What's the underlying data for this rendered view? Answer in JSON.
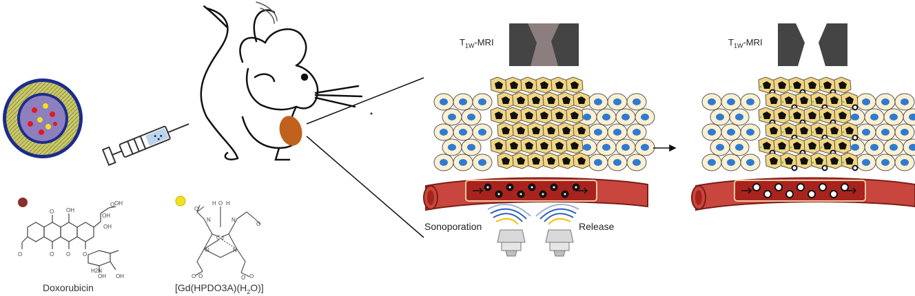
{
  "labels": {
    "mri_left_prefix": "T",
    "mri_left_sub": "1W",
    "mri_left_suffix": "-MRI",
    "mri_right_prefix": "T",
    "mri_right_sub": "1W",
    "mri_right_suffix": "-MRI",
    "sonoporation": "Sonoporation",
    "release": "Release",
    "doxorubicin_caption": "Doxorubicin",
    "gd_caption_part1": "[Gd(HPDO3A)(H",
    "gd_caption_sub": "2",
    "gd_caption_part2": "O)]"
  },
  "structure_atoms": {
    "dox": [
      "O",
      "OH",
      "O",
      "OH",
      "OH",
      "OH",
      "O",
      "O",
      "O",
      "O",
      "OH",
      "H2N",
      "OH"
    ],
    "gd": [
      "H",
      "O",
      "H",
      "N",
      "N",
      "Gd",
      "N",
      "N",
      "O",
      "O",
      "O",
      "O",
      "O",
      "O"
    ]
  },
  "colors": {
    "doxorubicin_dot": "#8B2E2E",
    "gd_dot": "#F2E11E",
    "vessel": "#C8463E",
    "vessel_lumen": "#A8231E",
    "tumor_cell": "#F2D682",
    "normal_cell": "#FBF0D2",
    "nucleus": "#2F7BD1",
    "mri_dark": "#444444",
    "mri_gray": "#8C7E7E",
    "mri_bright": "#FFFFFF",
    "tumor_organ": "#C0621E"
  },
  "icons": {
    "liposome": "liposome-icon",
    "syringe": "syringe-icon",
    "mouse": "mouse-drawing",
    "transducer_left": "ultrasound-transducer-icon",
    "transducer_right": "ultrasound-transducer-icon",
    "arrow": "right-arrow-icon"
  }
}
